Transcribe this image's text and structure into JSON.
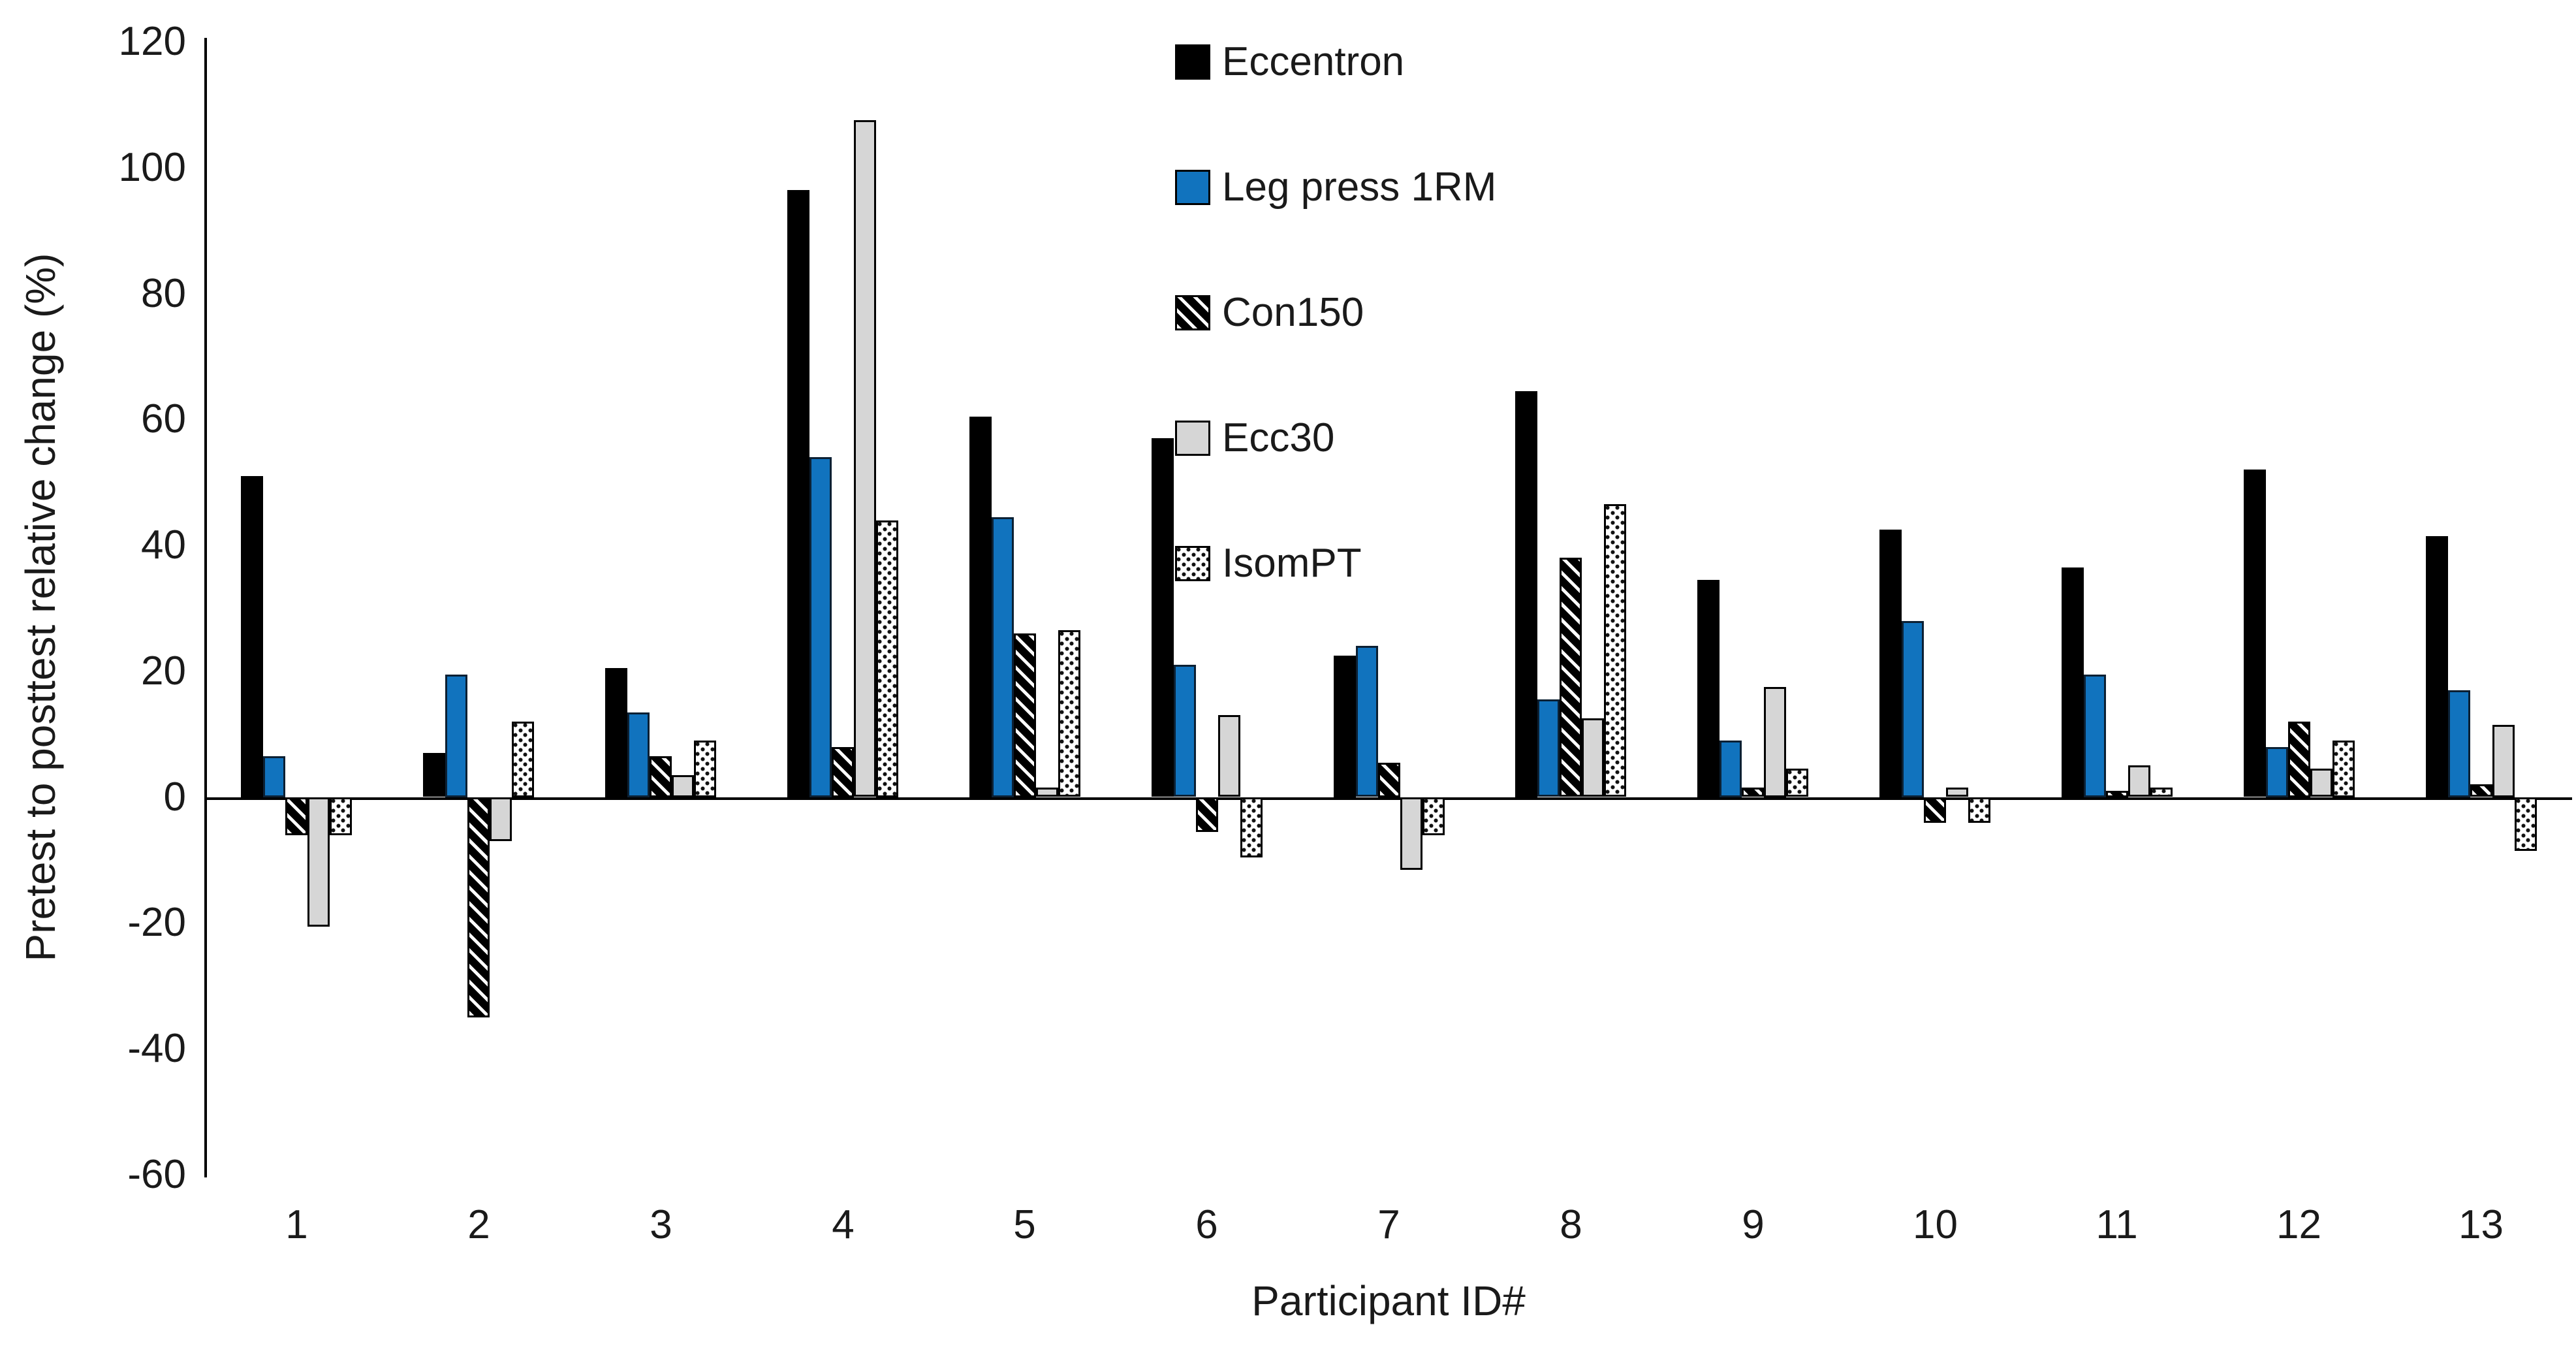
{
  "chart_data": {
    "type": "bar",
    "title": "",
    "xlabel": "Participant ID#",
    "ylabel": "Pretest to posttest relative change (%)",
    "categories": [
      "1",
      "2",
      "3",
      "4",
      "5",
      "6",
      "7",
      "8",
      "9",
      "10",
      "11",
      "12",
      "13"
    ],
    "series": [
      {
        "name": "Eccentron",
        "color": "#000000",
        "border": "#000000",
        "pattern": "solid",
        "values": [
          51,
          7,
          20.5,
          96.5,
          60.5,
          57,
          22.5,
          64.5,
          34.5,
          42.5,
          36.5,
          52,
          41.5
        ]
      },
      {
        "name": "Leg press 1RM",
        "color": "#1173BE",
        "border": "#0C2033",
        "pattern": "solid",
        "values": [
          6.5,
          19.5,
          13.5,
          54,
          44.5,
          21,
          24,
          15.5,
          9,
          28,
          19.5,
          8,
          17
        ]
      },
      {
        "name": "Con150",
        "color": "#000000",
        "border": "#000000",
        "pattern": "diagonal-hatch",
        "values": [
          -6,
          -35,
          6.5,
          8,
          26,
          -5.5,
          5.5,
          38,
          1.5,
          -4,
          1,
          12,
          2
        ]
      },
      {
        "name": "Ecc30",
        "color": "#D6D6D6",
        "border": "#000000",
        "pattern": "solid",
        "values": [
          -20.5,
          -7,
          3.5,
          107.5,
          1.5,
          13,
          -11.5,
          12.5,
          17.5,
          1.5,
          5,
          4.5,
          11.5
        ]
      },
      {
        "name": "IsomPT",
        "color": "#FFFFFF",
        "border": "#000000",
        "pattern": "dots",
        "values": [
          -6,
          12,
          9,
          44,
          26.5,
          -9.5,
          -6,
          46.5,
          4.5,
          -4,
          1.5,
          9,
          -8.5
        ]
      }
    ],
    "ylim": [
      -60,
      120
    ],
    "ytick_step": 20,
    "grid": false,
    "legend_position": "inside-top-center",
    "legend_entries": [
      "Eccentron",
      "Leg press 1RM",
      "Con150",
      "Ecc30",
      "IsomPT"
    ]
  }
}
